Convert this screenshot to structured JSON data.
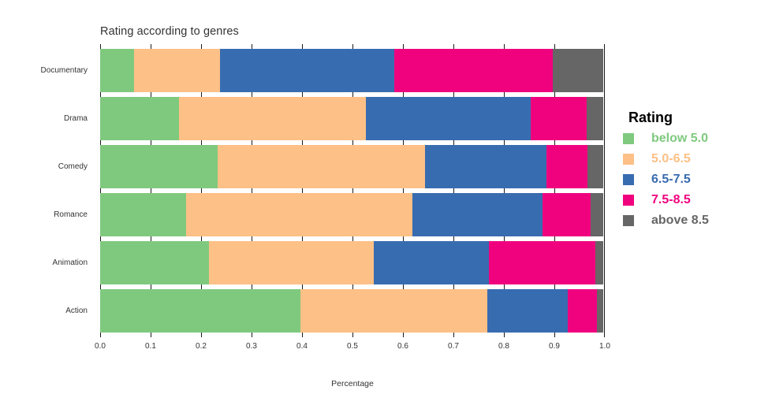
{
  "chart_data": {
    "type": "bar",
    "variant": "horizontal-stacked-percentage",
    "title": "Rating according to genres",
    "xlabel": "Percentage",
    "xlim": [
      0.0,
      1.0
    ],
    "xticks": [
      "0.0",
      "0.1",
      "0.2",
      "0.3",
      "0.4",
      "0.5",
      "0.6",
      "0.7",
      "0.8",
      "0.9",
      "1.0"
    ],
    "categories": [
      "Documentary",
      "Drama",
      "Comedy",
      "Romance",
      "Animation",
      "Action"
    ],
    "series": [
      {
        "name": "below 5.0",
        "color": "#7fc97f",
        "values": [
          0.068,
          0.157,
          0.233,
          0.171,
          0.216,
          0.398
        ]
      },
      {
        "name": "5.0-6.5",
        "color": "#fdc086",
        "values": [
          0.17,
          0.371,
          0.413,
          0.45,
          0.328,
          0.372
        ]
      },
      {
        "name": "6.5-7.5",
        "color": "#386cb0",
        "values": [
          0.347,
          0.327,
          0.241,
          0.258,
          0.228,
          0.16
        ]
      },
      {
        "name": "7.5-8.5",
        "color": "#f0027f",
        "values": [
          0.315,
          0.112,
          0.081,
          0.096,
          0.212,
          0.057
        ]
      },
      {
        "name": "above 8.5",
        "color": "#666666",
        "values": [
          0.1,
          0.033,
          0.032,
          0.025,
          0.016,
          0.013
        ]
      }
    ],
    "legend": {
      "title": "Rating",
      "position": "right"
    },
    "grid": {
      "vertical_lines": true,
      "line_color": "#1a1a1a"
    },
    "background_color": "#ffffff",
    "text_color": "#333333"
  }
}
